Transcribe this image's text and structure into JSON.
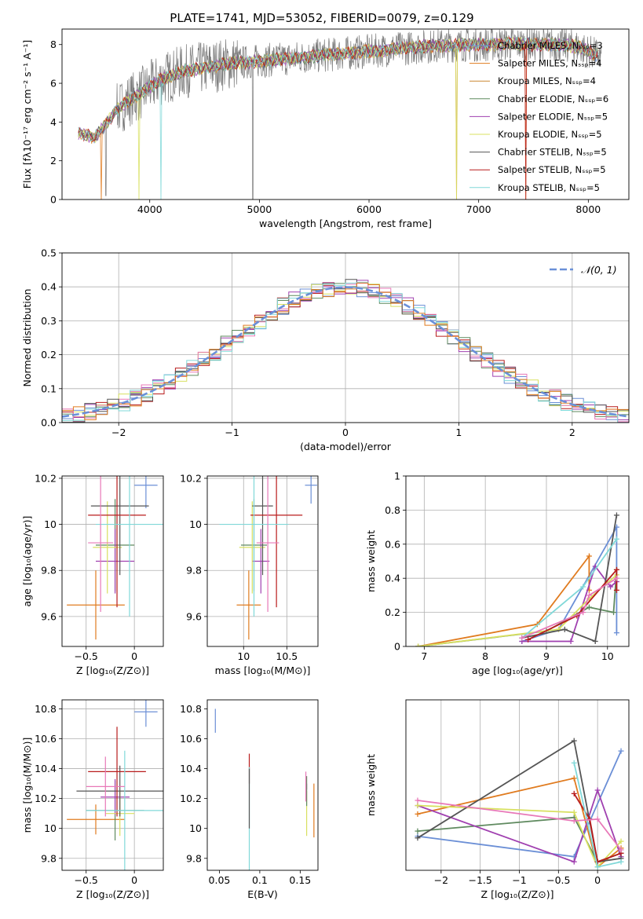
{
  "colors": {
    "chabrier_miles": "#6b8fd6",
    "salpeter_miles": "#e07b1f",
    "kroupa_miles": "#cc8833",
    "chabrier_elodie": "#5f8a5f",
    "salpeter_elodie": "#a040b0",
    "kroupa_elodie": "#d8e060",
    "chabrier_stelib": "#555555",
    "salpeter_stelib": "#b81c1c",
    "kroupa_stelib": "#80d8d8",
    "pink": "#e878b8",
    "gray_data": "#808080",
    "normal_curve": "#6a90d8"
  },
  "chart_data": [
    {
      "id": "spectrum",
      "type": "line",
      "title": "PLATE=1741, MJD=53052, FIBERID=0079, z=0.129",
      "xlabel": "wavelength [Angstrom, rest frame]",
      "ylabel": "Flux [fλ10⁻¹⁷ erg cm⁻² s⁻¹ A⁻¹]",
      "xlim": [
        3200,
        8370
      ],
      "ylim": [
        0,
        8.8
      ],
      "xticks": [
        4000,
        5000,
        6000,
        7000,
        8000
      ],
      "yticks": [
        0,
        2,
        4,
        6,
        8
      ],
      "legend_position": "upper-right",
      "legend": [
        "Chabrier MILES, Nₛₛₚ=3",
        "Salpeter MILES, Nₛₛₚ=4",
        "Kroupa MILES, Nₛₛₚ=4",
        "Chabrier ELODIE, Nₛₛₚ=6",
        "Salpeter ELODIE, Nₛₛₚ=5",
        "Kroupa ELODIE, Nₛₛₚ=5",
        "Chabrier STELIB, Nₛₛₚ=5",
        "Salpeter STELIB, Nₛₛₚ=5",
        "Kroupa STELIB, Nₛₛₚ=5"
      ],
      "continuum": {
        "x": [
          3350,
          3500,
          3600,
          3700,
          3800,
          3900,
          4000,
          4100,
          4300,
          4500,
          4700,
          4900,
          5100,
          5300,
          5500,
          5700,
          5900,
          6100,
          6300,
          6500,
          6700,
          6900,
          7100,
          7300,
          7500,
          7700,
          7900,
          8100
        ],
        "y": [
          3.4,
          3.2,
          3.9,
          4.6,
          5.1,
          5.4,
          5.8,
          6.2,
          6.6,
          6.8,
          7.0,
          7.1,
          7.2,
          7.3,
          7.4,
          7.5,
          7.6,
          7.7,
          7.8,
          7.9,
          7.95,
          8.0,
          8.0,
          8.05,
          8.0,
          8.0,
          7.9,
          7.4
        ]
      }
    },
    {
      "id": "residual-histogram",
      "type": "histogram",
      "xlabel": "(data-model)/error",
      "ylabel": "Normed distribution",
      "xlim": [
        -2.5,
        2.5
      ],
      "ylim": [
        0,
        0.5
      ],
      "xticks": [
        -2,
        -1,
        0,
        1,
        2
      ],
      "yticks": [
        0.0,
        0.1,
        0.2,
        0.3,
        0.4,
        0.5
      ],
      "grid": true,
      "legend_position": "upper-right",
      "legend": [
        "𝒩(0, 1)"
      ],
      "bin_width": 0.1
    },
    {
      "id": "age-vs-z",
      "type": "errorbar",
      "xlabel": "Z [log₁₀(Z/Z⊙)]",
      "ylabel": "age  [log₁₀(age/yr)]",
      "xlim": [
        -0.75,
        0.3
      ],
      "ylim": [
        9.47,
        10.21
      ],
      "xticks": [
        -0.5,
        0.0
      ],
      "yticks": [
        9.6,
        9.8,
        10.0,
        10.2
      ],
      "grid": true,
      "points": [
        {
          "series": "chabrier_miles",
          "x": 0.12,
          "y": 10.17,
          "xerr": 0.12,
          "yerr": 0.1
        },
        {
          "series": "salpeter_miles",
          "x": -0.4,
          "y": 9.65,
          "xerr": 0.3,
          "yerr": 0.15
        },
        {
          "series": "chabrier_elodie",
          "x": -0.2,
          "y": 9.91,
          "xerr": 0.2,
          "yerr": 0.2
        },
        {
          "series": "salpeter_elodie",
          "x": -0.2,
          "y": 9.84,
          "xerr": 0.2,
          "yerr": 0.14
        },
        {
          "series": "kroupa_elodie",
          "x": -0.28,
          "y": 9.9,
          "xerr": 0.15,
          "yerr": 0.2
        },
        {
          "series": "chabrier_stelib",
          "x": -0.15,
          "y": 10.08,
          "xerr": 0.3,
          "yerr": 0.3
        },
        {
          "series": "salpeter_stelib",
          "x": -0.18,
          "y": 10.04,
          "xerr": 0.3,
          "yerr": 0.4
        },
        {
          "series": "kroupa_stelib",
          "x": -0.05,
          "y": 10.0,
          "xerr": 0.35,
          "yerr": 0.4
        },
        {
          "series": "pink",
          "x": -0.35,
          "y": 9.92,
          "xerr": 0.13,
          "yerr": 0.3
        }
      ]
    },
    {
      "id": "age-vs-mass",
      "type": "errorbar",
      "xlabel": "mass [log₁₀(M/M⊙)]",
      "xlim": [
        9.58,
        10.86
      ],
      "ylim": [
        9.47,
        10.21
      ],
      "xticks": [
        10.0,
        10.5
      ],
      "yticks": [
        9.6,
        9.8,
        10.0,
        10.2
      ],
      "grid": true,
      "points": [
        {
          "series": "chabrier_miles",
          "x": 10.78,
          "y": 10.17,
          "xerr": 0.07,
          "yerr": 0.08
        },
        {
          "series": "salpeter_miles",
          "x": 10.06,
          "y": 9.65,
          "xerr": 0.14,
          "yerr": 0.15
        },
        {
          "series": "chabrier_elodie",
          "x": 10.12,
          "y": 9.91,
          "xerr": 0.15,
          "yerr": 0.2
        },
        {
          "series": "salpeter_elodie",
          "x": 10.2,
          "y": 9.84,
          "xerr": 0.1,
          "yerr": 0.14
        },
        {
          "series": "kroupa_elodie",
          "x": 10.1,
          "y": 9.9,
          "xerr": 0.15,
          "yerr": 0.2
        },
        {
          "series": "chabrier_stelib",
          "x": 10.22,
          "y": 10.08,
          "xerr": 0.12,
          "yerr": 0.3
        },
        {
          "series": "salpeter_stelib",
          "x": 10.38,
          "y": 10.04,
          "xerr": 0.3,
          "yerr": 0.4
        },
        {
          "series": "kroupa_stelib",
          "x": 10.12,
          "y": 10.0,
          "xerr": 0.4,
          "yerr": 0.4
        },
        {
          "series": "pink",
          "x": 10.28,
          "y": 9.92,
          "xerr": 0.13,
          "yerr": 0.3
        }
      ]
    },
    {
      "id": "weight-vs-age",
      "type": "line",
      "xlabel": "age  [log₁₀(age/yr)]",
      "ylabel": "mass weight",
      "xlim": [
        6.7,
        10.35
      ],
      "ylim": [
        0.0,
        1.0
      ],
      "xticks": [
        7,
        8,
        9,
        10
      ],
      "yticks": [
        0.0,
        0.2,
        0.4,
        0.6,
        0.8,
        1.0
      ],
      "grid": true,
      "series": [
        {
          "key": "chabrier_miles",
          "x": [
            8.6,
            9.2,
            10.15,
            10.15
          ],
          "y": [
            0.03,
            0.1,
            0.7,
            0.08
          ]
        },
        {
          "key": "salpeter_miles",
          "x": [
            6.9,
            8.85,
            9.7,
            9.7
          ],
          "y": [
            0.0,
            0.13,
            0.53,
            0.33
          ]
        },
        {
          "key": "chabrier_elodie",
          "x": [
            6.9,
            9.0,
            9.7,
            10.1,
            10.15
          ],
          "y": [
            0.0,
            0.09,
            0.23,
            0.2,
            0.45
          ]
        },
        {
          "key": "salpeter_elodie",
          "x": [
            8.6,
            9.4,
            9.8,
            10.05,
            10.15
          ],
          "y": [
            0.03,
            0.03,
            0.47,
            0.35,
            0.38
          ]
        },
        {
          "key": "kroupa_elodie",
          "x": [
            6.9,
            9.2,
            9.7,
            10.15
          ],
          "y": [
            0.0,
            0.1,
            0.28,
            0.42
          ]
        },
        {
          "key": "chabrier_stelib",
          "x": [
            8.6,
            9.3,
            9.8,
            10.15
          ],
          "y": [
            0.05,
            0.1,
            0.03,
            0.77
          ]
        },
        {
          "key": "salpeter_stelib",
          "x": [
            8.7,
            9.5,
            10.15,
            10.15
          ],
          "y": [
            0.04,
            0.18,
            0.45,
            0.33
          ]
        },
        {
          "key": "kroupa_stelib",
          "x": [
            8.6,
            9.6,
            10.15
          ],
          "y": [
            0.05,
            0.35,
            0.63
          ]
        },
        {
          "key": "pink",
          "x": [
            8.6,
            9.6,
            9.7,
            10.15
          ],
          "y": [
            0.05,
            0.2,
            0.3,
            0.4
          ]
        }
      ]
    },
    {
      "id": "mass-vs-z",
      "type": "errorbar",
      "xlabel": "Z [log₁₀(Z/Z⊙)]",
      "ylabel": "mass [log₁₀(M/M⊙)]",
      "xlim": [
        -0.75,
        0.3
      ],
      "ylim": [
        9.72,
        10.86
      ],
      "xticks": [
        -0.5,
        0.0
      ],
      "yticks": [
        9.8,
        10.0,
        10.2,
        10.4,
        10.6,
        10.8
      ],
      "grid": true,
      "points": [
        {
          "series": "chabrier_miles",
          "x": 0.12,
          "y": 10.78,
          "xerr": 0.12,
          "yerr": 0.1
        },
        {
          "series": "salpeter_miles",
          "x": -0.4,
          "y": 10.06,
          "xerr": 0.3,
          "yerr": 0.1
        },
        {
          "series": "chabrier_elodie",
          "x": -0.2,
          "y": 10.12,
          "xerr": 0.3,
          "yerr": 0.2
        },
        {
          "series": "salpeter_elodie",
          "x": -0.2,
          "y": 10.21,
          "xerr": 0.15,
          "yerr": 0.12
        },
        {
          "series": "kroupa_elodie",
          "x": -0.15,
          "y": 10.1,
          "xerr": 0.15,
          "yerr": 0.15
        },
        {
          "series": "chabrier_stelib",
          "x": -0.15,
          "y": 10.25,
          "xerr": 0.45,
          "yerr": 0.17
        },
        {
          "series": "salpeter_stelib",
          "x": -0.18,
          "y": 10.38,
          "xerr": 0.3,
          "yerr": 0.3
        },
        {
          "series": "kroupa_stelib",
          "x": -0.1,
          "y": 10.12,
          "xerr": 0.4,
          "yerr": 0.4
        },
        {
          "series": "pink",
          "x": -0.3,
          "y": 10.28,
          "xerr": 0.2,
          "yerr": 0.2
        }
      ]
    },
    {
      "id": "mass-vs-ebv",
      "type": "errorbar",
      "xlabel": "E(B-V)",
      "xlim": [
        0.035,
        0.172
      ],
      "ylim": [
        9.72,
        10.86
      ],
      "xticks": [
        0.05,
        0.1,
        0.15
      ],
      "yticks": [
        9.8,
        10.0,
        10.2,
        10.4,
        10.6,
        10.8
      ],
      "points": [
        {
          "series": "chabrier_miles",
          "x": 0.045,
          "y": 10.72,
          "xerr": 0,
          "yerr": 0.08
        },
        {
          "series": "salpeter_elodie",
          "x": 0.158,
          "y": 10.28,
          "xerr": 0,
          "yerr": 0.02
        },
        {
          "series": "kroupa_elodie",
          "x": 0.158,
          "y": 10.1,
          "xerr": 0,
          "yerr": 0.15
        },
        {
          "series": "chabrier_elodie",
          "x": 0.158,
          "y": 10.25,
          "xerr": 0,
          "yerr": 0.1
        },
        {
          "series": "salpeter_stelib",
          "x": 0.087,
          "y": 10.4,
          "xerr": 0,
          "yerr": 0.1
        },
        {
          "series": "kroupa_stelib",
          "x": 0.087,
          "y": 10.06,
          "xerr": 0,
          "yerr": 0.35
        },
        {
          "series": "chabrier_stelib",
          "x": 0.087,
          "y": 10.2,
          "xerr": 0,
          "yerr": 0.2
        },
        {
          "series": "pink",
          "x": 0.157,
          "y": 10.28,
          "xerr": 0,
          "yerr": 0.1
        },
        {
          "series": "salpeter_miles",
          "x": 0.167,
          "y": 10.12,
          "xerr": 0,
          "yerr": 0.18
        }
      ]
    },
    {
      "id": "weight-vs-z",
      "type": "line",
      "xlabel": "Z [log₁₀(Z/Z⊙)]",
      "ylabel": "mass weight",
      "xlim": [
        -2.45,
        0.4
      ],
      "ylim": [
        0.0,
        1.0
      ],
      "xticks": [
        -2.0,
        -1.5,
        -1.0,
        -0.5,
        0.0
      ],
      "grid": true,
      "series": [
        {
          "key": "chabrier_miles",
          "x": [
            -2.3,
            -0.3,
            0.3
          ],
          "y": [
            0.2,
            0.08,
            0.7
          ]
        },
        {
          "key": "salpeter_miles",
          "x": [
            -2.3,
            -0.3,
            0.0,
            0.3
          ],
          "y": [
            0.33,
            0.54,
            0.02,
            0.13
          ]
        },
        {
          "key": "chabrier_elodie",
          "x": [
            -2.3,
            -0.3,
            0.0,
            0.3
          ],
          "y": [
            0.23,
            0.31,
            0.05,
            0.1
          ]
        },
        {
          "key": "salpeter_elodie",
          "x": [
            -2.3,
            -0.3,
            0.0,
            0.3
          ],
          "y": [
            0.38,
            0.05,
            0.47,
            0.08
          ]
        },
        {
          "key": "kroupa_elodie",
          "x": [
            -2.3,
            -0.3,
            0.0,
            0.3
          ],
          "y": [
            0.38,
            0.34,
            0.02,
            0.17
          ]
        },
        {
          "key": "chabrier_stelib",
          "x": [
            -2.3,
            -0.3,
            0.0,
            0.3
          ],
          "y": [
            0.19,
            0.76,
            0.05,
            0.07
          ]
        },
        {
          "key": "salpeter_stelib",
          "x": [
            -0.3,
            -0.1,
            0.0,
            0.3
          ],
          "y": [
            0.45,
            0.3,
            0.05,
            0.1
          ]
        },
        {
          "key": "kroupa_stelib",
          "x": [
            -0.3,
            0.0,
            0.3
          ],
          "y": [
            0.63,
            0.02,
            0.05
          ]
        },
        {
          "key": "pink",
          "x": [
            -2.3,
            -0.3,
            0.0,
            0.3
          ],
          "y": [
            0.41,
            0.29,
            0.3,
            0.12
          ]
        }
      ]
    }
  ]
}
